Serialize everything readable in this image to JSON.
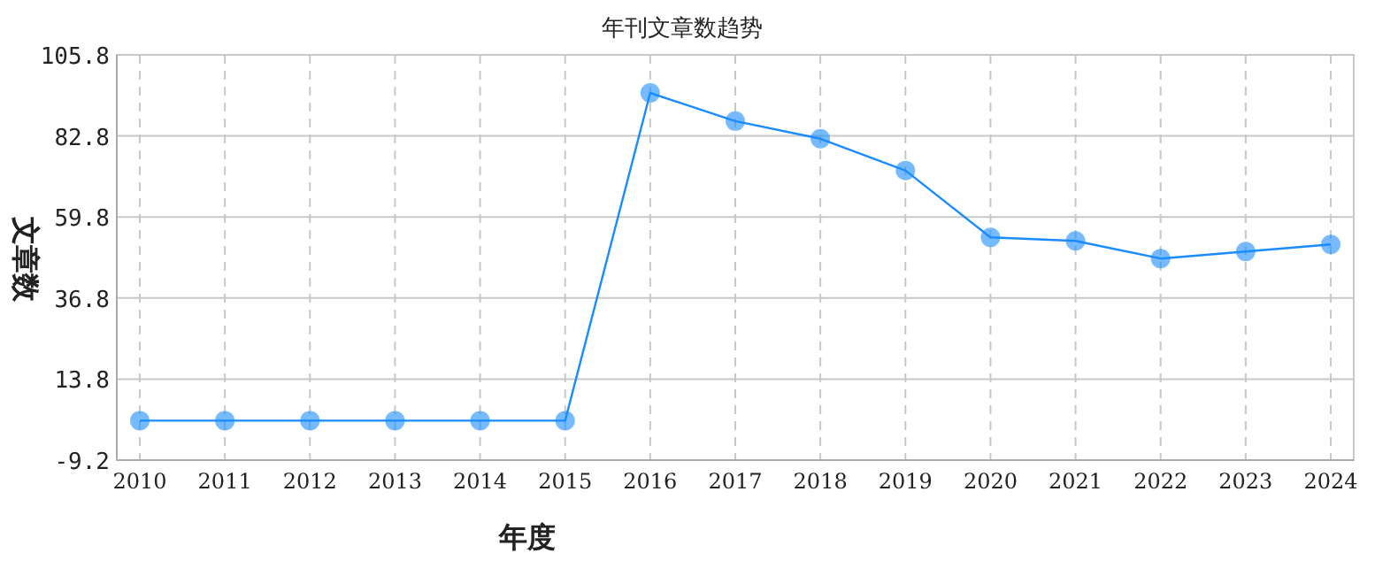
{
  "chart_data": {
    "type": "line",
    "title": "年刊文章数趋势",
    "xlabel": "年度",
    "ylabel": "文章数",
    "categories": [
      "2010",
      "2011",
      "2012",
      "2013",
      "2014",
      "2015",
      "2016",
      "2017",
      "2018",
      "2019",
      "2020",
      "2021",
      "2022",
      "2023",
      "2024"
    ],
    "series": [
      {
        "color": "#1a8cff",
        "values": [
          2,
          2,
          2,
          2,
          2,
          2,
          95,
          87,
          82,
          73,
          54,
          53,
          48,
          50,
          52
        ]
      }
    ],
    "ylim": [
      -9.2,
      105.8
    ],
    "yticks": [
      -9.2,
      13.8,
      36.8,
      59.8,
      82.8,
      105.8
    ],
    "grid": true,
    "marker": "circle",
    "line_style": "solid"
  }
}
